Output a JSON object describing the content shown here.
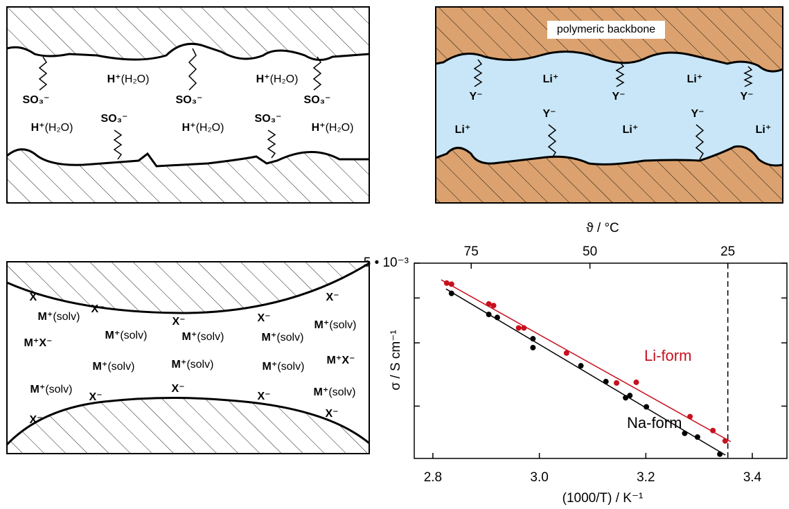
{
  "panels": [
    {
      "labels": [
        {
          "ion": "SO₃⁻"
        },
        {
          "ion": "H⁺",
          "solvent": "(H₂O)"
        },
        {
          "ion": "SO₃⁻"
        },
        {
          "ion": "H⁺",
          "solvent": "(H₂O)"
        },
        {
          "ion": "SO₃⁻"
        },
        {
          "ion": "H⁺",
          "solvent": "(H₂O)"
        },
        {
          "ion": "SO₃⁻"
        },
        {
          "ion": "H⁺",
          "solvent": "(H₂O)"
        },
        {
          "ion": "SO₃⁻"
        },
        {
          "ion": "H⁺",
          "solvent": "(H₂O)"
        }
      ]
    },
    {
      "title": "polymeric backbone",
      "labels": [
        {
          "ion": "Li⁺"
        },
        {
          "ion": "Li⁺"
        },
        {
          "ion": "Y⁻"
        },
        {
          "ion": "Y⁻"
        },
        {
          "ion": "Y⁻"
        },
        {
          "ion": "Y⁻"
        },
        {
          "ion": "Y⁻"
        },
        {
          "ion": "Li⁺"
        },
        {
          "ion": "Li⁺"
        },
        {
          "ion": "Li⁺"
        }
      ]
    },
    {
      "labels": [
        {
          "ion": "X⁻"
        },
        {
          "ion": "X⁻"
        },
        {
          "ion": "X⁻"
        },
        {
          "ion": "X⁻"
        },
        {
          "ion": "X⁻"
        },
        {
          "ion": "M⁺",
          "solvent": "(solv)"
        },
        {
          "ion": "M⁺",
          "solvent": "(solv)"
        },
        {
          "ion": "M⁺",
          "solvent": "(solv)"
        },
        {
          "ion": "M⁺",
          "solvent": "(solv)"
        },
        {
          "ion": "M⁺",
          "solvent": "(solv)"
        },
        {
          "ion": "M⁺X⁻"
        },
        {
          "ion": "M⁺X⁻"
        },
        {
          "ion": "M⁺",
          "solvent": "(solv)"
        },
        {
          "ion": "M⁺",
          "solvent": "(solv)"
        },
        {
          "ion": "M⁺",
          "solvent": "(solv)"
        },
        {
          "ion": "M⁺",
          "solvent": "(solv)"
        },
        {
          "ion": "X⁻"
        },
        {
          "ion": "X⁻"
        },
        {
          "ion": "X⁻"
        },
        {
          "ion": "M⁺",
          "solvent": "(solv)"
        },
        {
          "ion": "X⁻"
        },
        {
          "ion": "X⁻"
        }
      ]
    }
  ],
  "chart_data": {
    "type": "scatter",
    "xlabel": "(1000/T) / K⁻¹",
    "ylabel": "σ / S cm⁻¹",
    "x2label": "ϑ / °C",
    "xlim": [
      2.765,
      3.465
    ],
    "xticks": [
      2.8,
      {
        "value": 3,
        "label": "3.0"
      },
      3.2,
      3.4
    ],
    "x2ticks": [
      {
        "value": 2.872,
        "label": "75"
      },
      {
        "value": 3.095,
        "label": "50"
      },
      {
        "value": 3.354,
        "label": "25"
      }
    ],
    "vline_x": 3.354,
    "ylim": [
      0.00143,
      0.005
    ],
    "log_y": true,
    "yticks": [
      {
        "value": 0.005,
        "label": "5 • 10⁻³"
      }
    ],
    "minor_yticks": [
      0.004,
      0.003,
      0.002
    ],
    "series": [
      {
        "name": "Li-form",
        "color": "#c8101e",
        "x": [
          2.826,
          2.835,
          2.905,
          2.914,
          2.961,
          2.971,
          3.051,
          3.145,
          3.182,
          3.283,
          3.326,
          3.349
        ],
        "values": [
          0.0044,
          0.00437,
          0.00385,
          0.00381,
          0.0033,
          0.0033,
          0.00281,
          0.00232,
          0.00233,
          0.00187,
          0.00171,
          0.0016
        ]
      },
      {
        "name": "Na-form",
        "color": "#000000",
        "x": [
          2.835,
          2.905,
          2.921,
          2.988,
          2.988,
          3.078,
          3.125,
          3.162,
          3.17,
          3.201,
          3.273,
          3.297,
          3.339
        ],
        "values": [
          0.00412,
          0.0036,
          0.00353,
          0.00308,
          0.00291,
          0.00259,
          0.00234,
          0.00211,
          0.00214,
          0.00199,
          0.00168,
          0.00164,
          0.00147
        ]
      }
    ]
  }
}
